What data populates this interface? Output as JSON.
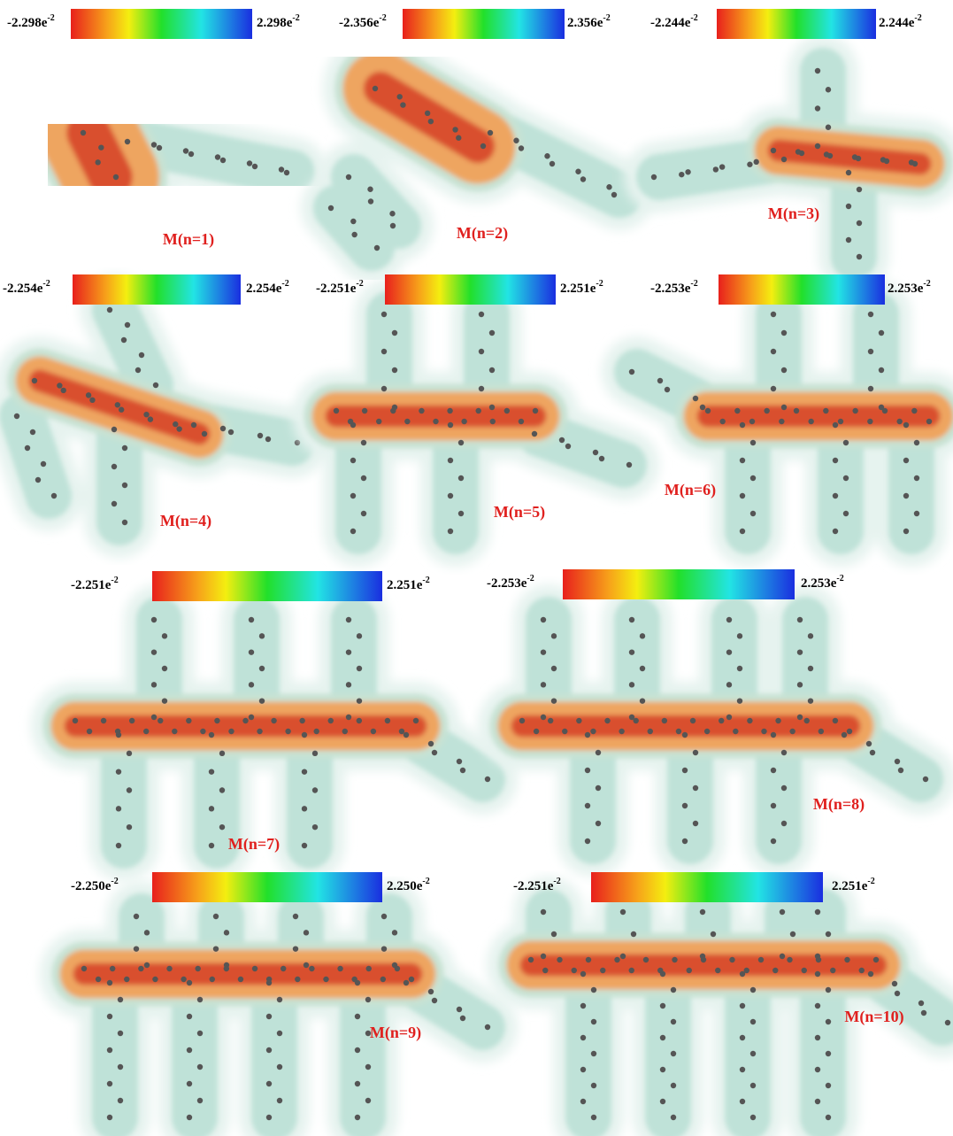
{
  "panels": [
    {
      "min": {
        "base": "-2.298e",
        "exp": "-2"
      },
      "max": {
        "base": "2.298e",
        "exp": "-2"
      },
      "label": "M(n=1)"
    },
    {
      "min": {
        "base": "-2.356e",
        "exp": "-2"
      },
      "max": {
        "base": "2.356e",
        "exp": "-2"
      },
      "label": "M(n=2)"
    },
    {
      "min": {
        "base": "-2.244e",
        "exp": "-2"
      },
      "max": {
        "base": "2.244e",
        "exp": "-2"
      },
      "label": "M(n=3)"
    },
    {
      "min": {
        "base": "-2.254e",
        "exp": "-2"
      },
      "max": {
        "base": "2.254e",
        "exp": "-2"
      },
      "label": "M(n=4)"
    },
    {
      "min": {
        "base": "-2.251e",
        "exp": "-2"
      },
      "max": {
        "base": "2.251e",
        "exp": "-2"
      },
      "label": "M(n=5)"
    },
    {
      "min": {
        "base": "-2.253e",
        "exp": "-2"
      },
      "max": {
        "base": "2.253e",
        "exp": "-2"
      },
      "label": "M(n=6)"
    },
    {
      "min": {
        "base": "-2.251e",
        "exp": "-2"
      },
      "max": {
        "base": "2.251e",
        "exp": "-2"
      },
      "label": "M(n=7)"
    },
    {
      "min": {
        "base": "-2.253e",
        "exp": "-2"
      },
      "max": {
        "base": "2.253e",
        "exp": "-2"
      },
      "label": "M(n=8)"
    },
    {
      "min": {
        "base": "-2.250e",
        "exp": "-2"
      },
      "max": {
        "base": "2.250e",
        "exp": "-2"
      },
      "label": "M(n=9)"
    },
    {
      "min": {
        "base": "-2.251e",
        "exp": "-2"
      },
      "max": {
        "base": "2.251e",
        "exp": "-2"
      },
      "label": "M(n=10)"
    }
  ]
}
